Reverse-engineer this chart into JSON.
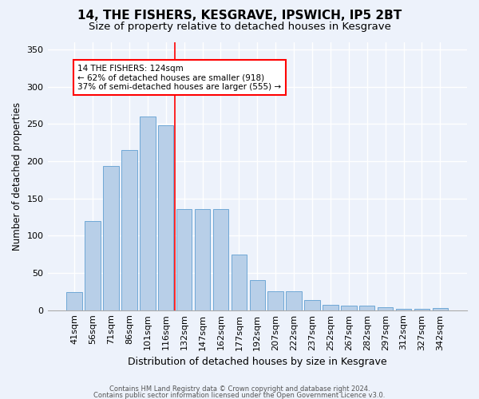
{
  "title": "14, THE FISHERS, KESGRAVE, IPSWICH, IP5 2BT",
  "subtitle": "Size of property relative to detached houses in Kesgrave",
  "xlabel": "Distribution of detached houses by size in Kesgrave",
  "ylabel": "Number of detached properties",
  "categories": [
    "41sqm",
    "56sqm",
    "71sqm",
    "86sqm",
    "101sqm",
    "116sqm",
    "132sqm",
    "147sqm",
    "162sqm",
    "177sqm",
    "192sqm",
    "207sqm",
    "222sqm",
    "237sqm",
    "252sqm",
    "267sqm",
    "282sqm",
    "297sqm",
    "312sqm",
    "327sqm",
    "342sqm"
  ],
  "values": [
    24,
    120,
    193,
    215,
    260,
    248,
    136,
    136,
    136,
    75,
    40,
    25,
    25,
    14,
    7,
    6,
    6,
    4,
    2,
    2,
    3
  ],
  "bar_color": "#b8cfe8",
  "bar_edge_color": "#6fa8d6",
  "vline_x_index": 5.5,
  "vline_color": "red",
  "annotation_text": "14 THE FISHERS: 124sqm\n← 62% of detached houses are smaller (918)\n37% of semi-detached houses are larger (555) →",
  "annotation_box_color": "white",
  "annotation_box_edge": "red",
  "bg_color": "#edf2fb",
  "plot_bg_color": "#edf2fb",
  "grid_color": "white",
  "footer1": "Contains HM Land Registry data © Crown copyright and database right 2024.",
  "footer2": "Contains public sector information licensed under the Open Government Licence v3.0.",
  "ylim": [
    0,
    360
  ],
  "yticks": [
    0,
    50,
    100,
    150,
    200,
    250,
    300,
    350
  ],
  "title_fontsize": 11,
  "subtitle_fontsize": 9.5,
  "xlabel_fontsize": 9,
  "ylabel_fontsize": 8.5,
  "tick_fontsize": 8,
  "footer_fontsize": 6
}
